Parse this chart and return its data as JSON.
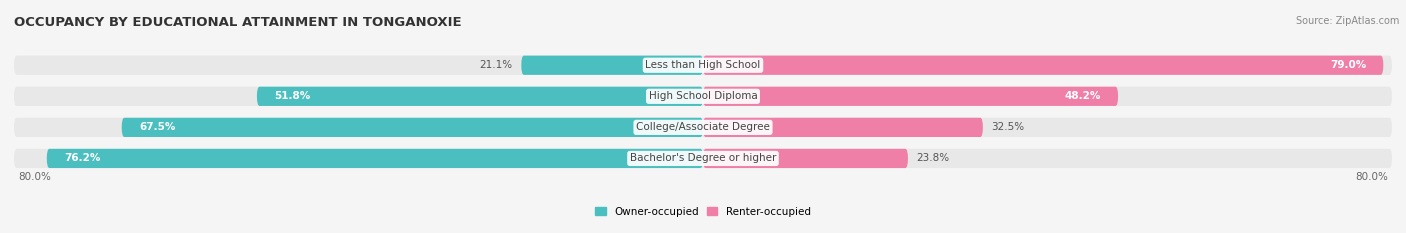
{
  "title": "OCCUPANCY BY EDUCATIONAL ATTAINMENT IN TONGANOXIE",
  "source": "Source: ZipAtlas.com",
  "categories": [
    "Less than High School",
    "High School Diploma",
    "College/Associate Degree",
    "Bachelor's Degree or higher"
  ],
  "owner_pct": [
    21.1,
    51.8,
    67.5,
    76.2
  ],
  "renter_pct": [
    79.0,
    48.2,
    32.5,
    23.8
  ],
  "owner_color": "#4BBFBF",
  "renter_color": "#F07FA8",
  "renter_color_light": "#F8BBD0",
  "owner_label": "Owner-occupied",
  "renter_label": "Renter-occupied",
  "bar_height": 0.62,
  "row_bg_color": "#e8e8e8",
  "xlim_left": -80,
  "xlim_right": 80,
  "axis_label_left": "80.0%",
  "axis_label_right": "80.0%",
  "title_fontsize": 9.5,
  "source_fontsize": 7,
  "cat_fontsize": 7.5,
  "pct_fontsize": 7.5,
  "legend_fontsize": 7.5,
  "bg_color": "#f5f5f5",
  "total": 100
}
